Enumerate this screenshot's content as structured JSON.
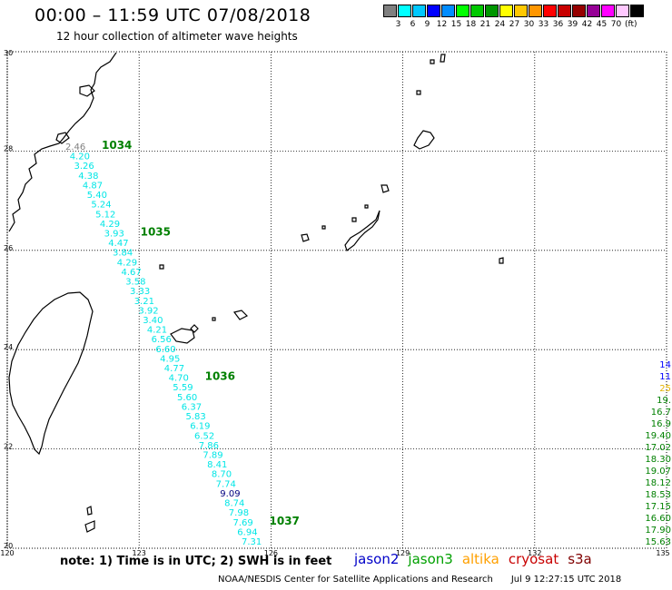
{
  "header": {
    "title": "00:00 – 11:59 UTC 07/08/2018",
    "subtitle": "12 hour collection of altimeter wave heights"
  },
  "legend": {
    "unit": "(ft)",
    "colors": [
      "#808080",
      "#00ffff",
      "#00c8ff",
      "#0000ff",
      "#008cff",
      "#00ff00",
      "#00c800",
      "#009600",
      "#ffff00",
      "#ffc800",
      "#ff9600",
      "#ff0000",
      "#c80000",
      "#960000",
      "#960096",
      "#ff00ff",
      "#ffc8ff",
      "#000000"
    ],
    "labels": [
      "3",
      "6",
      "9",
      "12",
      "15",
      "18",
      "21",
      "24",
      "27",
      "30",
      "33",
      "36",
      "39",
      "42",
      "45",
      "70"
    ]
  },
  "map": {
    "lon_ticks": [
      "120",
      "123",
      "126",
      "129",
      "132",
      "135"
    ],
    "lat_ticks": [
      "30",
      "28",
      "26",
      "24",
      "22",
      "20"
    ],
    "lon_range": [
      120,
      135
    ],
    "lat_range": [
      20,
      30
    ],
    "grid": true,
    "land_color": "#000000"
  },
  "track": {
    "color": "#00e6e6",
    "first_value_color": "#808080",
    "values": [
      "2.46",
      "4.20",
      "3.26",
      "4.38",
      "4.87",
      "5.40",
      "5.24",
      "5.12",
      "4.29",
      "3.93",
      "4.47",
      "3.84",
      "4.29",
      "4.67",
      "3.58",
      "3.33",
      "3.21",
      "3.92",
      "3.40",
      "4.21",
      "6.56",
      "6.60",
      "4.95",
      "4.77",
      "4.70",
      "5.59",
      "5.60",
      "6.37",
      "5.83",
      "6.19",
      "6.52",
      "7.86",
      "7.89",
      "8.41",
      "8.70",
      "7.74",
      "9.09",
      "8.74",
      "7.98",
      "7.69",
      "6.94",
      "7.31"
    ],
    "highlight_value": "9.09",
    "highlight_color": "#000080"
  },
  "orbit_labels": {
    "color": "#008000",
    "items": [
      {
        "text": "1034",
        "index": 0
      },
      {
        "text": "1035",
        "index": 9
      },
      {
        "text": "1036",
        "index": 24
      },
      {
        "text": "1037",
        "index": 39
      }
    ]
  },
  "right_edge": {
    "values": [
      {
        "text": "14",
        "color": "#0000ff"
      },
      {
        "text": "11",
        "color": "#0000ff"
      },
      {
        "text": "25",
        "color": "#e6b400"
      },
      {
        "text": "19.",
        "color": "#008000"
      },
      {
        "text": "16.7",
        "color": "#008000"
      },
      {
        "text": "16.9",
        "color": "#008000"
      },
      {
        "text": "19.40",
        "color": "#008000"
      },
      {
        "text": "17.02",
        "color": "#008000"
      },
      {
        "text": "18.30",
        "color": "#008000"
      },
      {
        "text": "19.07",
        "color": "#008000"
      },
      {
        "text": "18.12",
        "color": "#008000"
      },
      {
        "text": "18.53",
        "color": "#008000"
      },
      {
        "text": "17.15",
        "color": "#008000"
      },
      {
        "text": "16.60",
        "color": "#008000"
      },
      {
        "text": "17.90",
        "color": "#008000"
      },
      {
        "text": "15.63",
        "color": "#008000"
      }
    ]
  },
  "footer": {
    "note": "note: 1) Time is in UTC; 2) SWH is in feet",
    "satellites": [
      {
        "name": "jason2",
        "color": "#0000c8"
      },
      {
        "name": "jason3",
        "color": "#00a000"
      },
      {
        "name": "altika",
        "color": "#ffa000"
      },
      {
        "name": "cryosat",
        "color": "#c80000"
      },
      {
        "name": "s3a",
        "color": "#800000"
      }
    ],
    "credit": "NOAA/NESDIS Center for Satellite Applications and Research",
    "timestamp": "Jul  9 12:27:15 UTC 2018"
  }
}
